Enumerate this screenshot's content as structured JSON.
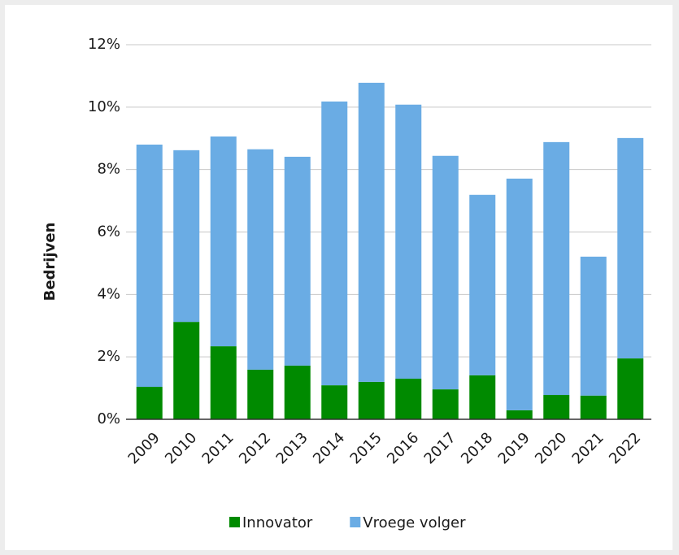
{
  "chart_data": {
    "type": "stacked_bar",
    "y_label": "Bedrijven",
    "categories": [
      "2009",
      "2010",
      "2011",
      "2012",
      "2013",
      "2014",
      "2015",
      "2016",
      "2017",
      "2018",
      "2019",
      "2020",
      "2021",
      "2022"
    ],
    "series": [
      {
        "name": "Innovator",
        "color": "#008a00",
        "values": [
          1.04,
          3.12,
          2.34,
          1.59,
          1.72,
          1.09,
          1.2,
          1.3,
          0.96,
          1.41,
          0.29,
          0.78,
          0.76,
          1.95
        ]
      },
      {
        "name": "Vroege volger",
        "color": "#6aace4",
        "values": [
          7.76,
          5.5,
          6.72,
          7.06,
          6.69,
          9.09,
          9.58,
          8.78,
          7.48,
          5.78,
          7.42,
          8.1,
          4.45,
          7.06
        ]
      }
    ],
    "ylim": [
      0,
      12
    ],
    "yticks": [
      {
        "value": 0,
        "label": "0%"
      },
      {
        "value": 2,
        "label": "2%"
      },
      {
        "value": 4,
        "label": "4%"
      },
      {
        "value": 6,
        "label": "6%"
      },
      {
        "value": 8,
        "label": "8%"
      },
      {
        "value": 10,
        "label": "10%"
      },
      {
        "value": 12,
        "label": "12%"
      }
    ],
    "grid": true,
    "legend": "bottom"
  }
}
